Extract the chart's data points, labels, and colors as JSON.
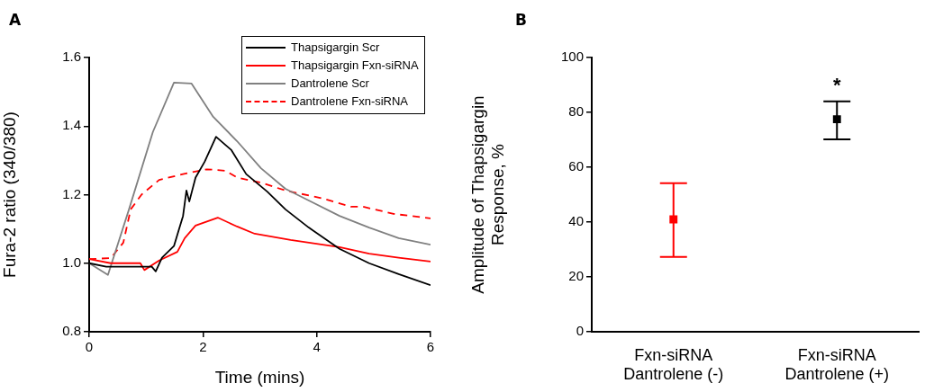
{
  "chart_data": [
    {
      "type": "line",
      "title": "A",
      "xlabel": "Time (mins)",
      "ylabel": "Fura-2 ratio (340/380)",
      "xlim": [
        0,
        6
      ],
      "xticks": [
        0,
        2,
        4,
        6
      ],
      "ylim": [
        0.8,
        1.6
      ],
      "yticks": [
        {
          "value": 0.8,
          "label": "0.8"
        },
        {
          "value": 1,
          "label": "1.0"
        },
        {
          "value": 1.2,
          "label": "1.2"
        },
        {
          "value": 1.4,
          "label": "1.4"
        },
        {
          "value": 1.6,
          "label": "1.6"
        }
      ],
      "legend": "top right",
      "marker": "none",
      "grid": false,
      "series": [
        {
          "name": "Thapsigargin Scr",
          "color": "#000000",
          "line_style": "solid",
          "x": [
            0,
            0.3,
            0.6,
            0.92,
            1.1,
            1.17,
            1.28,
            1.49,
            1.65,
            1.71,
            1.76,
            1.87,
            2.03,
            2.23,
            2.5,
            2.76,
            3.13,
            3.45,
            3.86,
            4.4,
            4.92,
            5.44,
            6
          ],
          "values": [
            1.0,
            0.99,
            0.99,
            0.99,
            0.99,
            0.976,
            1.016,
            1.05,
            1.138,
            1.212,
            1.18,
            1.25,
            1.296,
            1.369,
            1.33,
            1.26,
            1.209,
            1.157,
            1.104,
            1.042,
            1.0,
            0.968,
            0.936
          ]
        },
        {
          "name": "Thapsigargin Fxn-siRNA",
          "color": "#ff0000",
          "line_style": "solid",
          "x": [
            0,
            0.38,
            0.9,
            0.97,
            1.23,
            1.55,
            1.68,
            1.87,
            2.26,
            2.6,
            2.91,
            3.54,
            4.4,
            4.92,
            5.44,
            6
          ],
          "values": [
            1.012,
            1.0,
            1.0,
            0.98,
            1.008,
            1.033,
            1.073,
            1.11,
            1.133,
            1.107,
            1.086,
            1.068,
            1.047,
            1.028,
            1.016,
            1.005
          ]
        },
        {
          "name": "Dantrolene Scr",
          "color": "#808080",
          "line_style": "solid",
          "x": [
            0,
            0.33,
            0.7,
            1.12,
            1.49,
            1.8,
            2.18,
            2.6,
            3.02,
            3.45,
            3.86,
            4.4,
            4.92,
            5.44,
            6
          ],
          "values": [
            1.0,
            0.966,
            1.157,
            1.383,
            1.527,
            1.524,
            1.427,
            1.356,
            1.277,
            1.217,
            1.183,
            1.138,
            1.104,
            1.073,
            1.054
          ]
        },
        {
          "name": "Dantrolene Fxn-siRNA",
          "color": "#ff0000",
          "line_style": "dashed",
          "x": [
            0,
            0.38,
            0.6,
            0.73,
            0.92,
            1.23,
            1.65,
            2.07,
            2.39,
            2.6,
            3.02,
            3.45,
            4.08,
            4.6,
            4.81,
            5.35,
            6
          ],
          "values": [
            1.012,
            1.015,
            1.06,
            1.157,
            1.2,
            1.243,
            1.26,
            1.274,
            1.27,
            1.25,
            1.235,
            1.212,
            1.19,
            1.165,
            1.165,
            1.144,
            1.131
          ]
        }
      ]
    },
    {
      "type": "scatter",
      "title": "B",
      "ylabel": "Amplitude of Thapsigargin Response, %",
      "categories": [
        "Fxn-siRNA Dantrolene (-)",
        "Fxn-siRNA Dantrolene (+)"
      ],
      "ylim": [
        0,
        100
      ],
      "yticks": [
        0,
        20,
        40,
        60,
        80,
        100
      ],
      "marker": "square",
      "grid": false,
      "legend": false,
      "values": [
        41,
        77.5
      ],
      "colors": [
        "#ff0000",
        "#000000"
      ],
      "errors": [
        [
          27.3,
          54.2
        ],
        [
          70.2,
          84
        ]
      ],
      "annotations": [
        "*"
      ]
    }
  ]
}
